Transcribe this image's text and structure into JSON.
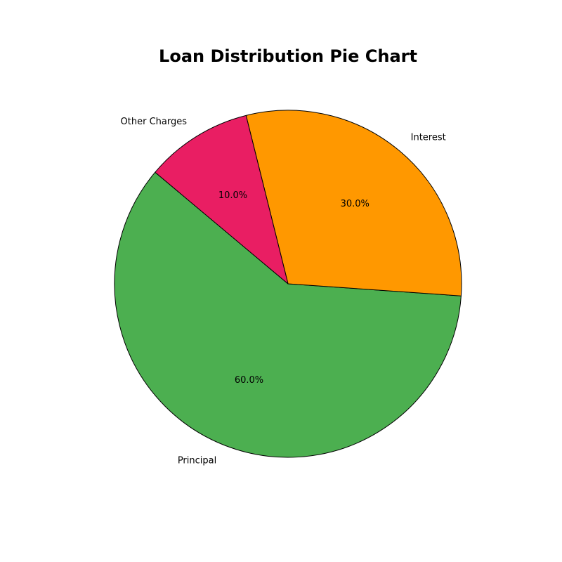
{
  "chart_data": {
    "type": "pie",
    "title": "Loan Distribution Pie Chart",
    "labels": [
      "Principal",
      "Interest",
      "Other Charges"
    ],
    "values": [
      60,
      30,
      10
    ],
    "percent_labels": [
      "60.0%",
      "30.0%",
      "10.0%"
    ],
    "colors": [
      "#4caf50",
      "#ff9800",
      "#e91e63"
    ],
    "edge_color": "#000000",
    "start_angle_deg": 140,
    "direction": "counterclockwise"
  }
}
